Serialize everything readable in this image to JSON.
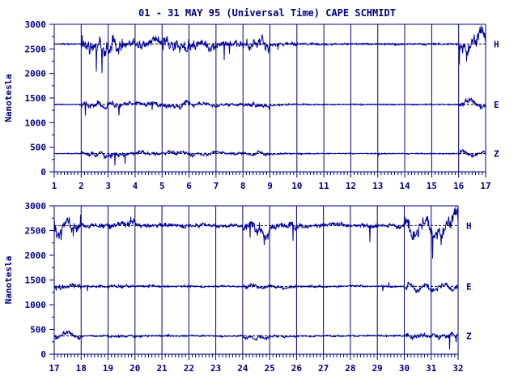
{
  "title": "01 - 31 MAY 95 (Universal Time) CAPE SCHMIDT",
  "ylabel": "Nanotesla",
  "colors": {
    "ink": "#000080",
    "frame": "#000080",
    "trace": "#0000a0"
  },
  "chart_data": [
    {
      "type": "line",
      "panel": "top",
      "xlim": [
        1,
        17
      ],
      "ylim": [
        0,
        3000
      ],
      "xticks": [
        "1",
        "2",
        "3",
        "4",
        "5",
        "6",
        "7",
        "8",
        "9",
        "10",
        "11",
        "12",
        "13",
        "14",
        "15",
        "16",
        "17"
      ],
      "yticks": [
        "0",
        "500",
        "1000",
        "1500",
        "2000",
        "2500",
        "3000"
      ],
      "series_labels": [
        "H",
        "E",
        "Z"
      ],
      "baselines": {
        "H": 2600,
        "E": 1370,
        "Z": 370
      },
      "activity": [
        {
          "start": 1.0,
          "end": 2.0,
          "level": 0.1
        },
        {
          "start": 2.0,
          "end": 3.6,
          "level": 1.0
        },
        {
          "start": 3.6,
          "end": 4.2,
          "level": 0.7
        },
        {
          "start": 4.2,
          "end": 5.0,
          "level": 0.8
        },
        {
          "start": 5.0,
          "end": 6.0,
          "level": 0.9
        },
        {
          "start": 6.0,
          "end": 7.0,
          "level": 0.7
        },
        {
          "start": 7.0,
          "end": 8.2,
          "level": 0.6
        },
        {
          "start": 8.2,
          "end": 9.0,
          "level": 0.8
        },
        {
          "start": 9.0,
          "end": 10.0,
          "level": 0.35
        },
        {
          "start": 10.0,
          "end": 16.0,
          "level": 0.15
        },
        {
          "start": 16.0,
          "end": 17.0,
          "level": 1.0
        }
      ]
    },
    {
      "type": "line",
      "panel": "bottom",
      "xlim": [
        17,
        32
      ],
      "ylim": [
        0,
        3000
      ],
      "xticks": [
        "17",
        "18",
        "19",
        "20",
        "21",
        "22",
        "23",
        "24",
        "25",
        "26",
        "27",
        "28",
        "29",
        "30",
        "31",
        "32"
      ],
      "yticks": [
        "0",
        "500",
        "1000",
        "1500",
        "2000",
        "2500",
        "3000"
      ],
      "series_labels": [
        "H",
        "E",
        "Z"
      ],
      "baselines": {
        "H": 2600,
        "E": 1370,
        "Z": 370
      },
      "activity": [
        {
          "start": 17.0,
          "end": 18.0,
          "level": 1.0
        },
        {
          "start": 18.0,
          "end": 19.0,
          "level": 0.4
        },
        {
          "start": 19.0,
          "end": 20.0,
          "level": 0.6
        },
        {
          "start": 20.0,
          "end": 21.0,
          "level": 0.4
        },
        {
          "start": 21.0,
          "end": 24.0,
          "level": 0.35
        },
        {
          "start": 24.0,
          "end": 25.0,
          "level": 0.9
        },
        {
          "start": 25.0,
          "end": 26.0,
          "level": 0.6
        },
        {
          "start": 26.0,
          "end": 30.0,
          "level": 0.35
        },
        {
          "start": 30.0,
          "end": 32.0,
          "level": 1.0
        }
      ]
    }
  ]
}
